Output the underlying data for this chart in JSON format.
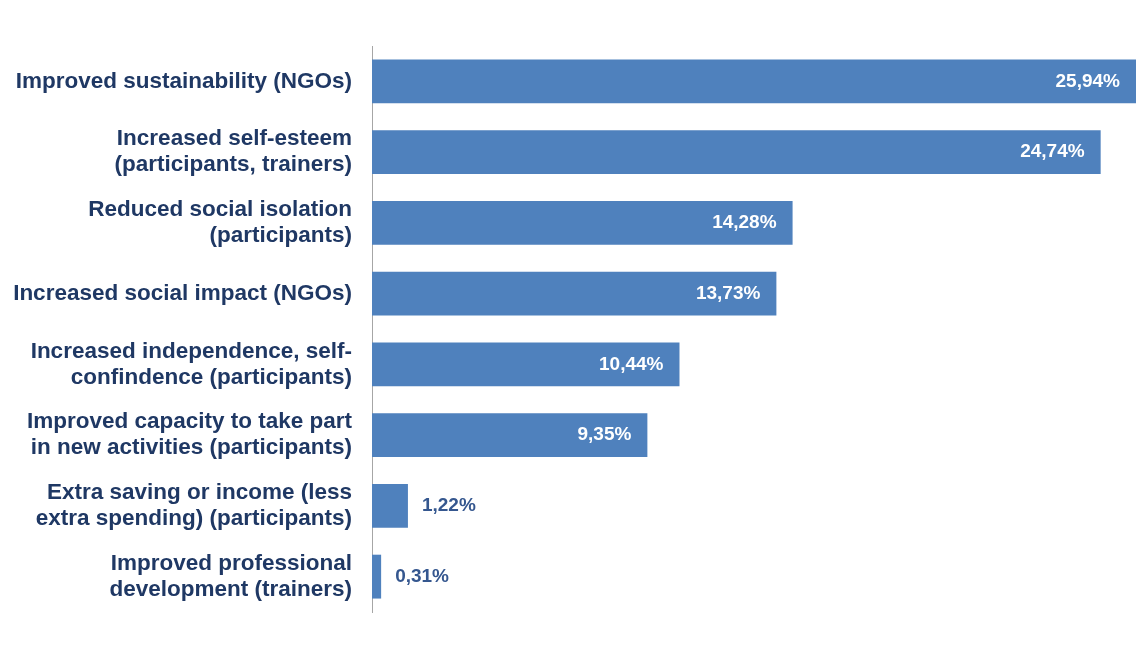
{
  "chart_data": {
    "type": "bar",
    "orientation": "horizontal",
    "categories": [
      "Improved sustainability (NGOs)",
      "Increased self-esteem (participants, trainers)",
      "Reduced social isolation (participants)",
      "Increased social impact (NGOs)",
      "Increased independence, self-confindence (participants)",
      "Improved capacity to take part in new activities (participants)",
      "Extra saving or income (less extra spending) (participants)",
      "Improved professional development (trainers)"
    ],
    "values": [
      25.94,
      24.74,
      14.28,
      13.73,
      10.44,
      9.35,
      1.22,
      0.31
    ],
    "value_labels": [
      "25,94%",
      "24,74%",
      "14,28%",
      "13,73%",
      "10,44%",
      "9,35%",
      "1,22%",
      "0,31%"
    ],
    "color": "#4f81bd",
    "tick_labels": "y"
  }
}
